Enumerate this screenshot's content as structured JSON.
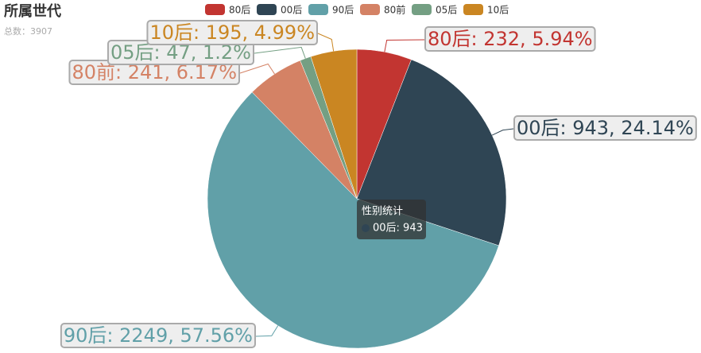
{
  "chart_data": {
    "type": "pie",
    "title": "所属世代",
    "subtitle": "总数：3907",
    "categories": [
      "80后",
      "00后",
      "90后",
      "80前",
      "05后",
      "10后"
    ],
    "values": [
      232,
      943,
      2249,
      241,
      47,
      195
    ],
    "value_labels": [
      "80后: 232, 5.94%",
      "00后: 943, 24.14%",
      "90后: 2249, 57.56%",
      "80前: 241, 6.17%",
      "05后: 47, 1.2%",
      "10后: 195, 4.99%"
    ],
    "colors": [
      "#c23531",
      "#2f4554",
      "#61a0a8",
      "#d48265",
      "#749f83",
      "#ca8622"
    ],
    "legend": "top",
    "tooltip": {
      "title": "性别统计",
      "text": "00后: 943",
      "category_index": 1
    }
  }
}
